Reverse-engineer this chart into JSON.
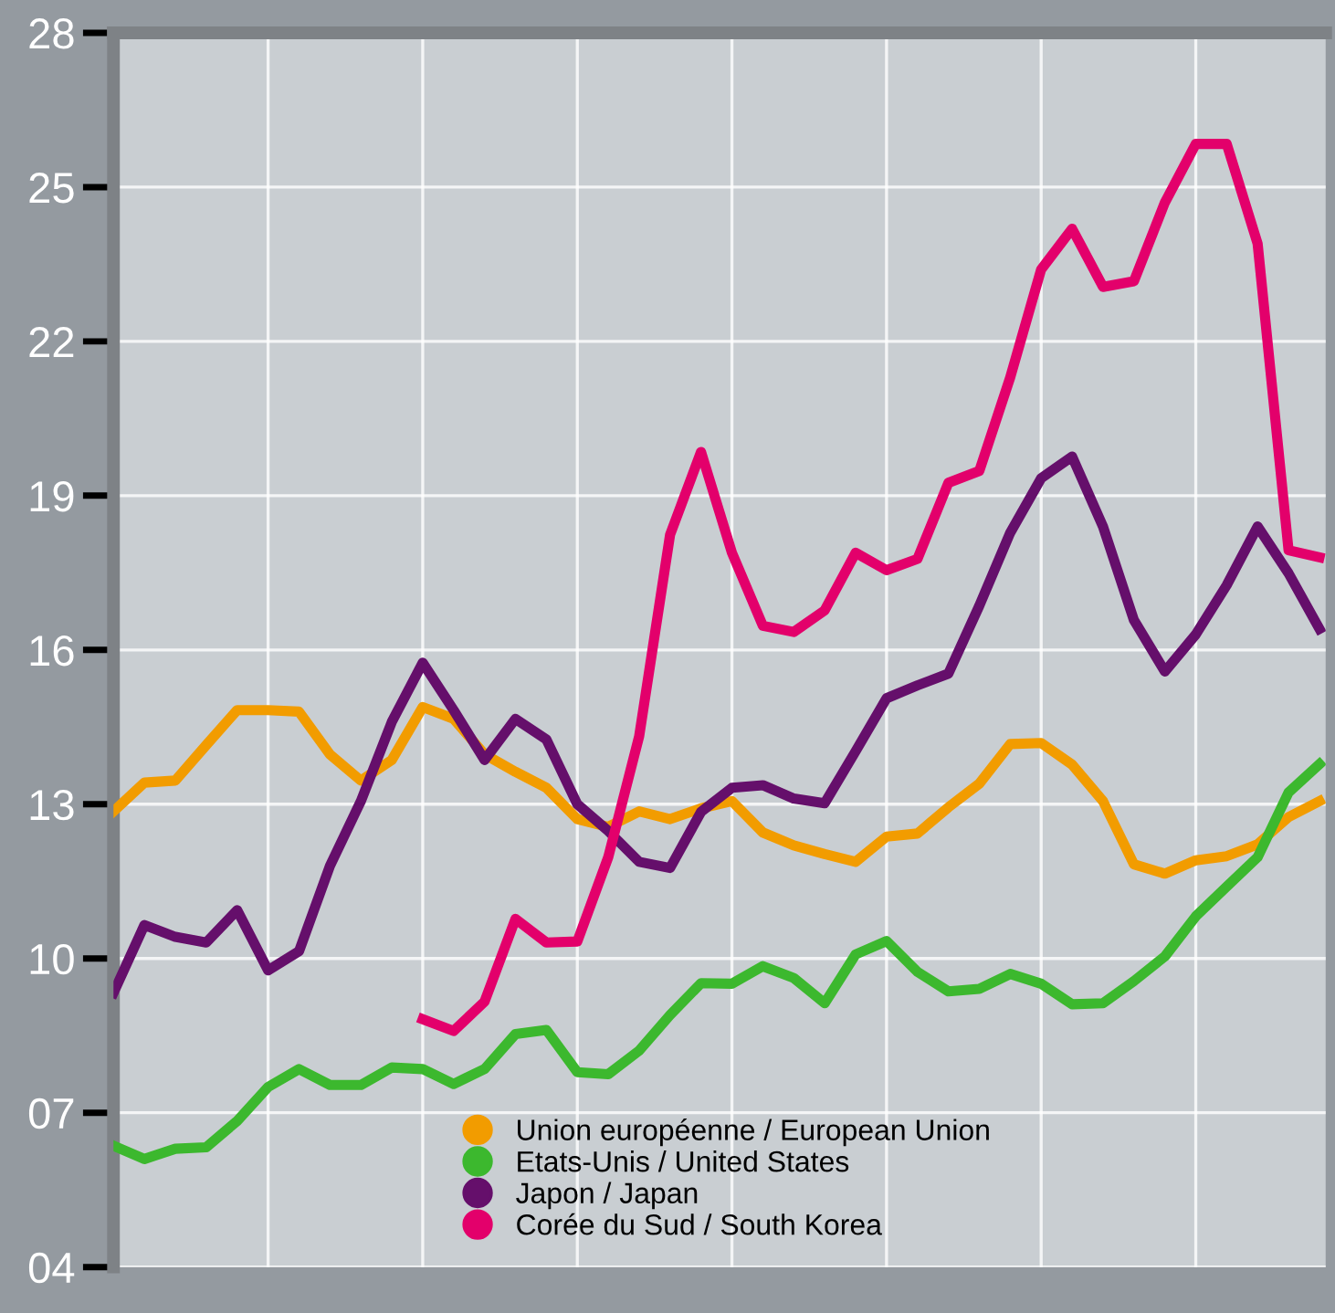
{
  "chart_data": {
    "type": "line",
    "categories": [
      null,
      null,
      null,
      null,
      null,
      null,
      null,
      null,
      null,
      null,
      null,
      null,
      null,
      null,
      null,
      null,
      null,
      null,
      null,
      null,
      null,
      null,
      null,
      null,
      null,
      null,
      null,
      null,
      null,
      null,
      null,
      null,
      null,
      null,
      null,
      null,
      null,
      null,
      null,
      null
    ],
    "series": [
      {
        "name": "Union européenne / European Union",
        "color": "#f29c00",
        "values": [
          12.86,
          13.42,
          13.46,
          14.15,
          14.83,
          14.83,
          14.8,
          13.97,
          13.46,
          13.86,
          14.89,
          14.66,
          13.97,
          13.63,
          13.32,
          12.71,
          12.56,
          12.86,
          12.71,
          12.92,
          13.06,
          12.45,
          12.2,
          12.03,
          11.88,
          12.37,
          12.43,
          12.94,
          13.4,
          14.17,
          14.19,
          13.77,
          13.06,
          11.83,
          11.65,
          11.91,
          11.99,
          12.22,
          12.75,
          13.06
        ]
      },
      {
        "name": "Etats-Unis / United States",
        "color": "#3cb82e",
        "values": [
          6.36,
          6.1,
          6.3,
          6.33,
          6.84,
          7.5,
          7.85,
          7.54,
          7.54,
          7.88,
          7.85,
          7.56,
          7.85,
          8.53,
          8.61,
          7.79,
          7.75,
          8.21,
          8.9,
          9.52,
          9.51,
          9.85,
          9.62,
          9.13,
          10.08,
          10.34,
          9.74,
          9.36,
          9.41,
          9.7,
          9.51,
          9.11,
          9.13,
          9.56,
          10.04,
          10.82,
          11.4,
          11.97,
          13.23,
          13.78
        ]
      },
      {
        "name": "Japon / Japan",
        "color": "#650f6b",
        "values": [
          9.33,
          10.65,
          10.42,
          10.31,
          10.94,
          9.77,
          10.14,
          11.8,
          13.06,
          14.6,
          15.75,
          14.83,
          13.86,
          14.66,
          14.26,
          13.0,
          12.48,
          11.88,
          11.76,
          12.85,
          13.32,
          13.37,
          13.11,
          13.02,
          14.03,
          15.06,
          15.31,
          15.54,
          16.86,
          18.28,
          19.34,
          19.76,
          18.4,
          16.58,
          15.58,
          16.3,
          17.26,
          18.4,
          17.49,
          16.41
        ]
      },
      {
        "name": "Corée du Sud / South Korea",
        "color": "#e3006b",
        "values": [
          null,
          null,
          null,
          null,
          null,
          null,
          null,
          null,
          null,
          null,
          8.82,
          8.59,
          9.16,
          10.77,
          10.31,
          10.33,
          11.97,
          14.32,
          18.24,
          19.85,
          17.89,
          16.47,
          16.35,
          16.77,
          17.89,
          17.55,
          17.77,
          19.25,
          19.48,
          21.3,
          23.4,
          24.19,
          23.06,
          23.17,
          24.7,
          25.84,
          25.84,
          23.9,
          17.94,
          17.8
        ]
      }
    ],
    "ylim": [
      4,
      28
    ],
    "yticks": [
      {
        "value": 4,
        "label": "04"
      },
      {
        "value": 7,
        "label": "07"
      },
      10,
      13,
      16,
      19,
      22,
      25,
      28
    ],
    "tick_labels": "y",
    "grid": true,
    "legend": "bottom",
    "marker": "none",
    "line_style": "solid"
  }
}
